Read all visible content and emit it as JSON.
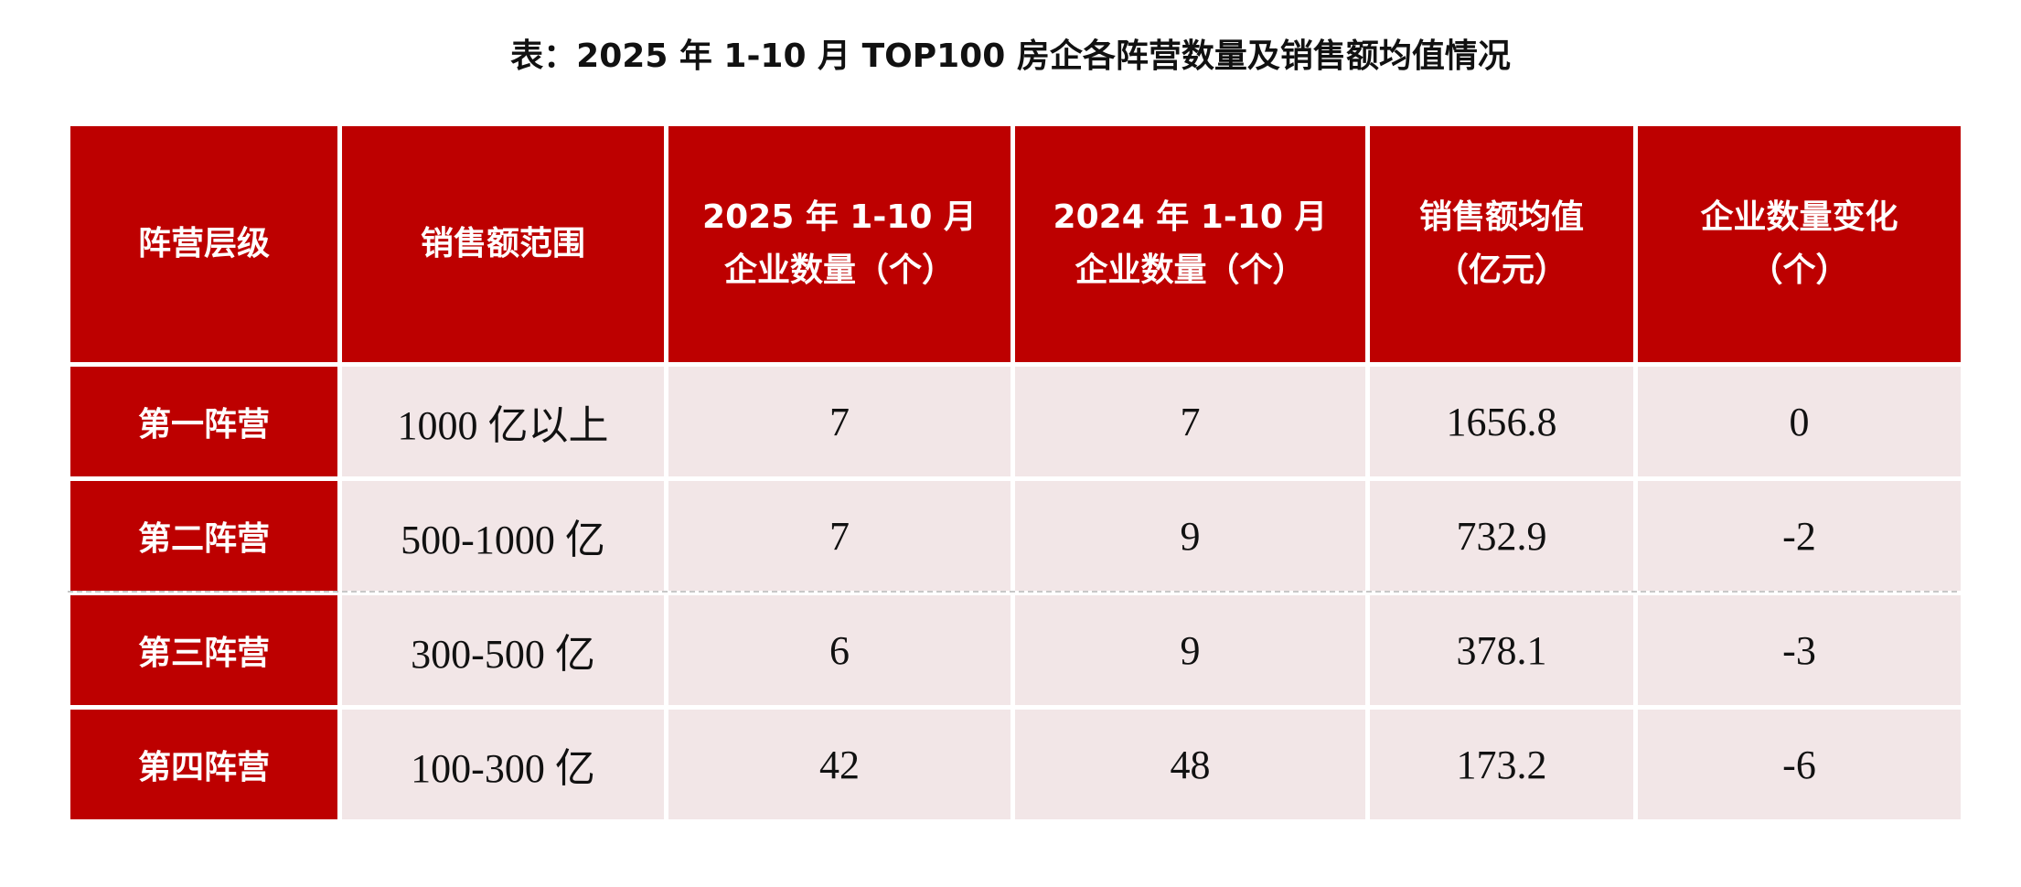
{
  "title": "表：2025 年 1-10 月 TOP100 房企各阵营数量及销售额均值情况",
  "colors": {
    "header_bg": "#BD0000",
    "cell_bg": "#F2E6E7"
  },
  "headers": [
    {
      "line1": "阵营层级",
      "line2": ""
    },
    {
      "line1": "销售额范围",
      "line2": ""
    },
    {
      "line1": "2025 年 1-10 月",
      "line2": "企业数量（个）"
    },
    {
      "line1": "2024 年 1-10 月",
      "line2": "企业数量（个）"
    },
    {
      "line1": "销售额均值",
      "line2": "（亿元）"
    },
    {
      "line1": "企业数量变化",
      "line2": "（个）"
    }
  ],
  "rows": [
    [
      "第一阵营",
      "1000 亿以上",
      "7",
      "7",
      "1656.8",
      "0"
    ],
    [
      "第二阵营",
      "500-1000 亿",
      "7",
      "9",
      "732.9",
      "-2"
    ],
    [
      "第三阵营",
      "300-500 亿",
      "6",
      "9",
      "378.1",
      "-3"
    ],
    [
      "第四阵营",
      "100-300 亿",
      "42",
      "48",
      "173.2",
      "-6"
    ]
  ]
}
